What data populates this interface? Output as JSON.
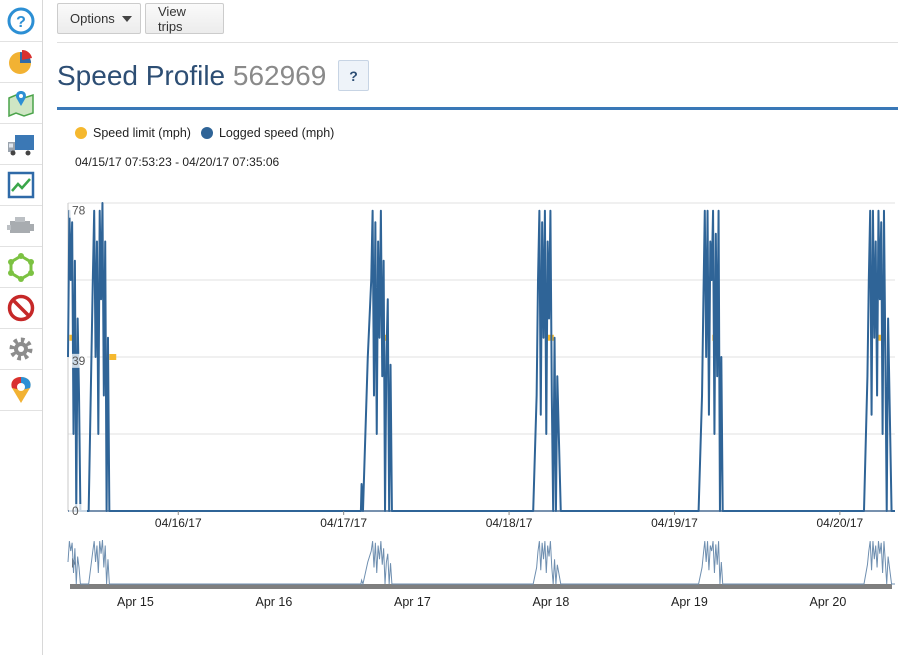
{
  "sidebar": {
    "items": [
      {
        "icon": "help-circle-icon"
      },
      {
        "icon": "pie-chart-icon"
      },
      {
        "icon": "map-pin-icon"
      },
      {
        "icon": "truck-icon"
      },
      {
        "icon": "trend-chart-icon"
      },
      {
        "icon": "engine-icon"
      },
      {
        "icon": "zone-hexagon-icon"
      },
      {
        "icon": "no-entry-icon"
      },
      {
        "icon": "gear-icon"
      },
      {
        "icon": "location-arrows-icon"
      }
    ]
  },
  "toolbar": {
    "options_label": "Options",
    "view_trips_label": "View trips"
  },
  "header": {
    "title": "Speed Profile",
    "vehicle_id": "562969",
    "help_label": "?"
  },
  "legend": {
    "speed_limit": "Speed limit (mph)",
    "logged_speed": "Logged speed (mph)"
  },
  "date_range": "04/15/17 07:53:23 - 04/20/17 07:35:06",
  "colors": {
    "speed_limit": "#f5b82e",
    "logged_speed": "#2f6497",
    "accent": "#3a78b7",
    "title": "#2d4e74"
  },
  "navigator_labels": [
    "Apr 15",
    "Apr 16",
    "Apr 17",
    "Apr 18",
    "Apr 19",
    "Apr 20"
  ],
  "chart_data": {
    "type": "line",
    "x_start_hours": 0,
    "x_end_hours": 120,
    "ylim": [
      0,
      80
    ],
    "yticks": [
      0,
      39,
      78
    ],
    "xtick_labels": [
      "04/16/17",
      "04/17/17",
      "04/18/17",
      "04/19/17",
      "04/20/17"
    ],
    "grid": true,
    "series": [
      {
        "name": "Speed limit (mph)",
        "color": "#f5b82e",
        "segments": [
          {
            "x": [
              0.2,
              1.0
            ],
            "values": [
              45,
              45
            ]
          },
          {
            "x": [
              6.0,
              7.0
            ],
            "values": [
              40,
              40
            ]
          },
          {
            "x": [
              45.5,
              46.5
            ],
            "values": [
              45,
              45
            ]
          },
          {
            "x": [
              69.5,
              70.5
            ],
            "values": [
              45,
              45
            ]
          },
          {
            "x": [
              93.5,
              94.5
            ],
            "values": [
              45,
              45
            ]
          },
          {
            "x": [
              117.5,
              118.5
            ],
            "values": [
              45,
              45
            ]
          }
        ]
      },
      {
        "name": "Logged speed (mph)",
        "color": "#2f6497",
        "x": [
          0,
          0.2,
          0.4,
          0.6,
          0.8,
          1.0,
          1.2,
          1.4,
          1.6,
          1.8,
          2.0,
          2.5,
          3.0,
          3.6,
          3.8,
          4.0,
          4.2,
          4.4,
          4.6,
          4.8,
          5.0,
          5.2,
          5.4,
          5.6,
          5.8,
          6.0,
          6.2,
          6.5,
          7.0,
          7.5,
          8,
          20,
          30,
          42.5,
          42.6,
          42.8,
          43.5,
          44.0,
          44.2,
          44.4,
          44.6,
          44.8,
          45.0,
          45.2,
          45.4,
          45.6,
          45.8,
          46.0,
          46.2,
          46.4,
          46.6,
          46.8,
          47.0,
          47.5,
          48,
          60,
          67.5,
          68.0,
          68.2,
          68.4,
          68.6,
          68.8,
          69.0,
          69.2,
          69.4,
          69.6,
          69.8,
          70.0,
          70.2,
          70.4,
          70.6,
          70.8,
          71.0,
          71.5,
          72,
          84,
          91.5,
          92.0,
          92.2,
          92.4,
          92.6,
          92.8,
          93.0,
          93.2,
          93.4,
          93.6,
          93.8,
          94.0,
          94.2,
          94.4,
          94.6,
          94.8,
          95.0,
          95.5,
          96,
          108,
          115.5,
          116.0,
          116.2,
          116.4,
          116.6,
          116.8,
          117.0,
          117.2,
          117.4,
          117.6,
          117.8,
          118.0,
          118.2,
          118.4,
          118.6,
          118.8,
          119.0,
          119.5,
          120
        ],
        "values": [
          40,
          78,
          60,
          75,
          20,
          65,
          0,
          50,
          30,
          0,
          0,
          0,
          0,
          60,
          78,
          40,
          70,
          20,
          78,
          55,
          80,
          30,
          70,
          0,
          45,
          0,
          0,
          0,
          0,
          0,
          0,
          0,
          0,
          0,
          7,
          0,
          40,
          60,
          78,
          30,
          75,
          20,
          70,
          45,
          78,
          35,
          65,
          0,
          40,
          55,
          0,
          38,
          0,
          0,
          0,
          0,
          0,
          30,
          60,
          78,
          25,
          75,
          45,
          78,
          20,
          70,
          50,
          78,
          30,
          0,
          45,
          0,
          35,
          0,
          0,
          0,
          0,
          30,
          55,
          78,
          40,
          78,
          25,
          70,
          60,
          78,
          20,
          72,
          35,
          78,
          0,
          40,
          0,
          0,
          0,
          0,
          0,
          35,
          60,
          78,
          25,
          78,
          45,
          70,
          30,
          78,
          55,
          75,
          20,
          78,
          40,
          0,
          50,
          0,
          0
        ]
      }
    ]
  }
}
